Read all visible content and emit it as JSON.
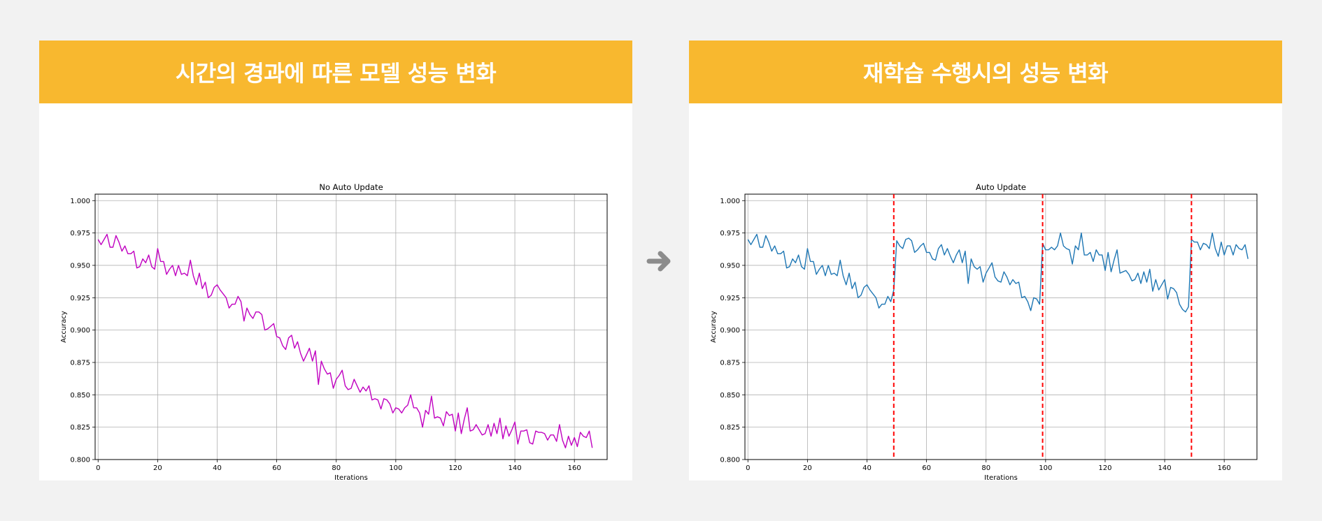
{
  "colors": {
    "banner": "#f8b82f",
    "panel": "#ffffff",
    "background": "#f2f2f2",
    "series_left": "#c000c0",
    "series_right": "#1f77b4",
    "marker": "#ff0000",
    "arrow": "#8c8c8c"
  },
  "left": {
    "banner_title": "시간의 경과에 따른 모델 성능 변화"
  },
  "right": {
    "banner_title": "재학습 수행시의 성능 변화"
  },
  "arrow_icon": "arrow-right-icon",
  "chart_data": [
    {
      "type": "line",
      "title": "No Auto Update",
      "xlabel": "Iterations",
      "ylabel": "Accuracy",
      "xlim": [
        -1,
        171
      ],
      "ylim": [
        0.8,
        1.005
      ],
      "xticks": [
        "0",
        "20",
        "40",
        "60",
        "80",
        "100",
        "120",
        "140",
        "160"
      ],
      "yticks": [
        "0.800",
        "0.825",
        "0.850",
        "0.875",
        "0.900",
        "0.925",
        "0.950",
        "0.975",
        "1.000"
      ],
      "grid": true,
      "series": [
        {
          "values": [
            0.97,
            0.966,
            0.97,
            0.974,
            0.964,
            0.964,
            0.973,
            0.968,
            0.961,
            0.965,
            0.959,
            0.959,
            0.961,
            0.948,
            0.949,
            0.955,
            0.952,
            0.958,
            0.949,
            0.947,
            0.963,
            0.953,
            0.953,
            0.943,
            0.947,
            0.95,
            0.942,
            0.95,
            0.943,
            0.944,
            0.942,
            0.954,
            0.942,
            0.935,
            0.944,
            0.932,
            0.937,
            0.925,
            0.927,
            0.933,
            0.935,
            0.931,
            0.928,
            0.925,
            0.917,
            0.92,
            0.92,
            0.926,
            0.922,
            0.907,
            0.917,
            0.912,
            0.909,
            0.914,
            0.914,
            0.912,
            0.9,
            0.901,
            0.903,
            0.905,
            0.895,
            0.894,
            0.888,
            0.885,
            0.894,
            0.896,
            0.886,
            0.891,
            0.882,
            0.876,
            0.881,
            0.886,
            0.876,
            0.884,
            0.858,
            0.876,
            0.87,
            0.866,
            0.867,
            0.855,
            0.862,
            0.865,
            0.869,
            0.857,
            0.854,
            0.855,
            0.862,
            0.857,
            0.852,
            0.856,
            0.853,
            0.857,
            0.846,
            0.847,
            0.846,
            0.839,
            0.847,
            0.846,
            0.843,
            0.836,
            0.84,
            0.839,
            0.836,
            0.84,
            0.842,
            0.85,
            0.84,
            0.84,
            0.836,
            0.825,
            0.838,
            0.835,
            0.849,
            0.832,
            0.833,
            0.832,
            0.826,
            0.837,
            0.834,
            0.835,
            0.822,
            0.836,
            0.82,
            0.831,
            0.84,
            0.822,
            0.823,
            0.827,
            0.823,
            0.819,
            0.82,
            0.827,
            0.818,
            0.828,
            0.82,
            0.832,
            0.816,
            0.826,
            0.818,
            0.823,
            0.829,
            0.812,
            0.822,
            0.822,
            0.823,
            0.813,
            0.812,
            0.822,
            0.821,
            0.821,
            0.82,
            0.815,
            0.819,
            0.819,
            0.814,
            0.827,
            0.815,
            0.809,
            0.818,
            0.811,
            0.817,
            0.81,
            0.821,
            0.818,
            0.817,
            0.822,
            0.809
          ]
        }
      ]
    },
    {
      "type": "line",
      "title": "Auto Update",
      "xlabel": "Iterations",
      "ylabel": "Accuracy",
      "xlim": [
        -1,
        171
      ],
      "ylim": [
        0.8,
        1.005
      ],
      "xticks": [
        "0",
        "20",
        "40",
        "60",
        "80",
        "100",
        "120",
        "140",
        "160"
      ],
      "yticks": [
        "0.800",
        "0.825",
        "0.850",
        "0.875",
        "0.900",
        "0.925",
        "0.950",
        "0.975",
        "1.000"
      ],
      "grid": true,
      "vlines": [
        49,
        99,
        149
      ],
      "series": [
        {
          "values": [
            0.97,
            0.966,
            0.97,
            0.974,
            0.964,
            0.964,
            0.973,
            0.968,
            0.961,
            0.965,
            0.959,
            0.959,
            0.961,
            0.948,
            0.949,
            0.955,
            0.952,
            0.958,
            0.949,
            0.947,
            0.963,
            0.953,
            0.953,
            0.943,
            0.947,
            0.95,
            0.942,
            0.95,
            0.943,
            0.944,
            0.942,
            0.954,
            0.942,
            0.935,
            0.944,
            0.932,
            0.937,
            0.925,
            0.927,
            0.933,
            0.935,
            0.931,
            0.928,
            0.925,
            0.917,
            0.92,
            0.92,
            0.926,
            0.922,
            0.931,
            0.969,
            0.965,
            0.963,
            0.97,
            0.971,
            0.969,
            0.96,
            0.962,
            0.965,
            0.967,
            0.96,
            0.96,
            0.955,
            0.954,
            0.963,
            0.966,
            0.958,
            0.963,
            0.957,
            0.952,
            0.958,
            0.962,
            0.952,
            0.961,
            0.936,
            0.955,
            0.949,
            0.947,
            0.949,
            0.937,
            0.944,
            0.948,
            0.952,
            0.941,
            0.938,
            0.937,
            0.945,
            0.941,
            0.935,
            0.939,
            0.936,
            0.937,
            0.925,
            0.926,
            0.922,
            0.915,
            0.925,
            0.924,
            0.92,
            0.967,
            0.962,
            0.962,
            0.964,
            0.962,
            0.965,
            0.975,
            0.965,
            0.963,
            0.962,
            0.951,
            0.965,
            0.962,
            0.975,
            0.958,
            0.958,
            0.96,
            0.953,
            0.962,
            0.958,
            0.958,
            0.946,
            0.96,
            0.945,
            0.954,
            0.962,
            0.944,
            0.945,
            0.946,
            0.943,
            0.938,
            0.939,
            0.944,
            0.936,
            0.945,
            0.937,
            0.947,
            0.93,
            0.939,
            0.931,
            0.935,
            0.939,
            0.924,
            0.933,
            0.932,
            0.929,
            0.92,
            0.916,
            0.914,
            0.918,
            0.97,
            0.968,
            0.968,
            0.962,
            0.967,
            0.966,
            0.963,
            0.975,
            0.963,
            0.957,
            0.968,
            0.958,
            0.965,
            0.965,
            0.958,
            0.966,
            0.963,
            0.962,
            0.966,
            0.955
          ]
        }
      ]
    }
  ]
}
